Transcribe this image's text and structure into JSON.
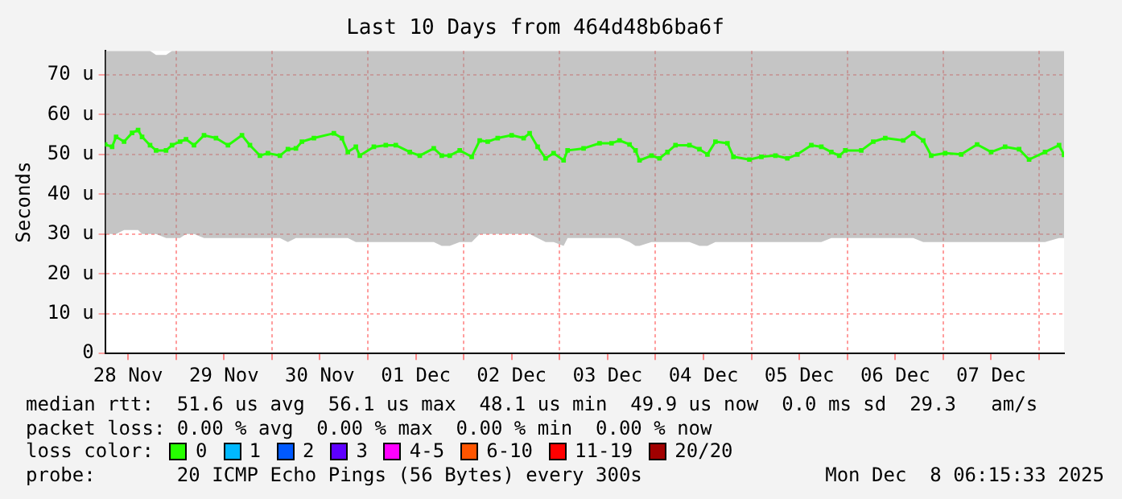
{
  "chart_data": {
    "type": "line",
    "title": "Last 10 Days from 464d48b6ba6f",
    "ylabel": "Seconds",
    "xlim": [
      "2025-11-28T06:15",
      "2025-12-08T06:15"
    ],
    "xticks": [
      {
        "value": "2025-11-28T12:00",
        "label": "28 Nov"
      },
      {
        "value": "2025-11-29T00:00",
        "label": null
      },
      {
        "value": "2025-11-29T12:00",
        "label": "29 Nov"
      },
      {
        "value": "2025-11-30T00:00",
        "label": null
      },
      {
        "value": "2025-11-30T12:00",
        "label": "30 Nov"
      },
      {
        "value": "2025-12-01T00:00",
        "label": null
      },
      {
        "value": "2025-12-01T12:00",
        "label": "01 Dec"
      },
      {
        "value": "2025-12-02T00:00",
        "label": null
      },
      {
        "value": "2025-12-02T12:00",
        "label": "02 Dec"
      },
      {
        "value": "2025-12-03T00:00",
        "label": null
      },
      {
        "value": "2025-12-03T12:00",
        "label": "03 Dec"
      },
      {
        "value": "2025-12-04T00:00",
        "label": null
      },
      {
        "value": "2025-12-04T12:00",
        "label": "04 Dec"
      },
      {
        "value": "2025-12-05T00:00",
        "label": null
      },
      {
        "value": "2025-12-05T12:00",
        "label": "05 Dec"
      },
      {
        "value": "2025-12-06T00:00",
        "label": null
      },
      {
        "value": "2025-12-06T12:00",
        "label": "06 Dec"
      },
      {
        "value": "2025-12-07T00:00",
        "label": null
      },
      {
        "value": "2025-12-07T12:00",
        "label": "07 Dec"
      },
      {
        "value": "2025-12-08T00:00",
        "label": null
      }
    ],
    "ylim": [
      0,
      76
    ],
    "yticks": [
      0,
      {
        "value": 10,
        "label": "10 u"
      },
      {
        "value": 20,
        "label": "20 u"
      },
      {
        "value": 30,
        "label": "30 u"
      },
      {
        "value": 40,
        "label": "40 u"
      },
      {
        "value": 50,
        "label": "50 u"
      },
      {
        "value": 60,
        "label": "60 u"
      },
      {
        "value": 70,
        "label": "70 u"
      }
    ],
    "grid": true,
    "marker": "square",
    "line_style": "solid",
    "legend": "bottom",
    "legend_title": "loss color:",
    "series": [
      {
        "name": "0",
        "color": "#26ff00",
        "x": [
          "2025-11-28T06:15",
          "2025-11-28T08:00",
          "2025-11-28T09:00",
          "2025-11-28T11:00",
          "2025-11-28T13:00",
          "2025-11-28T14:30",
          "2025-11-28T15:30",
          "2025-11-28T17:30",
          "2025-11-28T19:00",
          "2025-11-28T21:30",
          "2025-11-28T23:00",
          "2025-11-29T01:00",
          "2025-11-29T02:30",
          "2025-11-29T04:30",
          "2025-11-29T07:00",
          "2025-11-29T10:00",
          "2025-11-29T13:00",
          "2025-11-29T16:30",
          "2025-11-29T18:30",
          "2025-11-29T21:00",
          "2025-11-29T23:00",
          "2025-11-30T02:00",
          "2025-11-30T04:00",
          "2025-11-30T06:00",
          "2025-11-30T07:30",
          "2025-11-30T10:30",
          "2025-11-30T15:30",
          "2025-11-30T17:30",
          "2025-11-30T19:00",
          "2025-11-30T21:00",
          "2025-11-30T22:00",
          "2025-12-01T01:30",
          "2025-12-01T04:30",
          "2025-12-01T07:00",
          "2025-12-01T10:30",
          "2025-12-01T13:00",
          "2025-12-01T16:30",
          "2025-12-01T18:30",
          "2025-12-01T20:30",
          "2025-12-01T23:00",
          "2025-12-02T02:00",
          "2025-12-02T04:00",
          "2025-12-02T06:00",
          "2025-12-02T08:30",
          "2025-12-02T12:00",
          "2025-12-02T15:00",
          "2025-12-02T16:30",
          "2025-12-02T18:30",
          "2025-12-02T20:30",
          "2025-12-02T22:30",
          "2025-12-03T01:00",
          "2025-12-03T02:00",
          "2025-12-03T06:00",
          "2025-12-03T10:00",
          "2025-12-03T13:00",
          "2025-12-03T15:00",
          "2025-12-03T17:30",
          "2025-12-03T19:00",
          "2025-12-03T20:00",
          "2025-12-03T23:00",
          "2025-12-04T01:00",
          "2025-12-04T03:00",
          "2025-12-04T05:00",
          "2025-12-04T08:30",
          "2025-12-04T11:00",
          "2025-12-04T13:00",
          "2025-12-04T15:00",
          "2025-12-04T18:00",
          "2025-12-04T19:30",
          "2025-12-04T23:30",
          "2025-12-05T02:30",
          "2025-12-05T06:00",
          "2025-12-05T09:00",
          "2025-12-05T11:30",
          "2025-12-05T15:00",
          "2025-12-05T17:30",
          "2025-12-05T20:00",
          "2025-12-05T22:00",
          "2025-12-05T23:30",
          "2025-12-06T03:30",
          "2025-12-06T06:30",
          "2025-12-06T09:30",
          "2025-12-06T14:00",
          "2025-12-06T16:30",
          "2025-12-06T19:00",
          "2025-12-06T21:00",
          "2025-12-07T00:30",
          "2025-12-07T04:30",
          "2025-12-07T08:30",
          "2025-12-07T12:00",
          "2025-12-07T15:30",
          "2025-12-07T19:00",
          "2025-12-07T21:30",
          "2025-12-08T01:30",
          "2025-12-08T05:00",
          "2025-12-08T06:15"
        ],
        "values": [
          52.5,
          51.9,
          54.4,
          53.2,
          55.4,
          56.1,
          54.4,
          52.3,
          51.0,
          51.0,
          52.3,
          53.2,
          53.8,
          52.3,
          54.8,
          54.1,
          52.3,
          54.8,
          52.3,
          49.7,
          50.3,
          49.7,
          51.3,
          51.5,
          53.2,
          54.1,
          55.3,
          54.1,
          50.6,
          51.9,
          49.7,
          51.9,
          52.3,
          52.3,
          50.6,
          49.7,
          51.5,
          49.7,
          49.7,
          51.0,
          49.4,
          53.5,
          53.2,
          54.1,
          54.8,
          54.1,
          55.3,
          51.9,
          49.0,
          50.3,
          48.5,
          51.0,
          51.5,
          52.8,
          52.8,
          53.5,
          52.5,
          51.0,
          48.5,
          49.7,
          49.0,
          50.6,
          52.3,
          52.3,
          51.3,
          50.0,
          53.2,
          52.8,
          49.4,
          48.7,
          49.4,
          49.7,
          49.0,
          50.0,
          52.3,
          51.9,
          50.6,
          49.7,
          51.0,
          51.0,
          53.2,
          54.1,
          53.5,
          55.3,
          53.5,
          49.7,
          50.3,
          50.0,
          52.5,
          50.6,
          51.9,
          51.3,
          48.7,
          50.6,
          52.3,
          49.9
        ],
        "lower": [
          30,
          30,
          30,
          31,
          31,
          31,
          30,
          30,
          30,
          29,
          29,
          29,
          30,
          30,
          29,
          29,
          29,
          29,
          29,
          29,
          29,
          29,
          28,
          29,
          29,
          29,
          29,
          29,
          29,
          28,
          28,
          28,
          28,
          28,
          28,
          28,
          28,
          27,
          27,
          28,
          28,
          30,
          30,
          30,
          30,
          30,
          30,
          29,
          28,
          28,
          27,
          29,
          29,
          29,
          29,
          29,
          28,
          27,
          27,
          28,
          28,
          28,
          28,
          28,
          27,
          27,
          28,
          28,
          28,
          28,
          28,
          28,
          28,
          28,
          28,
          28,
          29,
          29,
          29,
          29,
          29,
          29,
          29,
          29,
          28,
          28,
          28,
          28,
          28,
          28,
          28,
          28,
          28,
          28,
          29,
          29
        ],
        "upper": [
          76,
          76,
          76,
          76,
          76,
          76,
          76,
          76,
          75,
          75,
          76,
          76,
          76,
          76,
          76,
          76,
          76,
          76,
          76,
          76,
          76,
          76,
          76,
          76,
          76,
          76,
          76,
          76,
          76,
          76,
          76,
          76,
          76,
          76,
          76,
          76,
          76,
          76,
          76,
          76,
          76,
          76,
          76,
          76,
          76,
          76,
          76,
          76,
          76,
          76,
          76,
          76,
          76,
          76,
          76,
          76,
          76,
          76,
          76,
          76,
          76,
          76,
          76,
          76,
          76,
          76,
          76,
          76,
          76,
          76,
          76,
          76,
          76,
          76,
          76,
          76,
          76,
          76,
          76,
          76,
          76,
          76,
          76,
          76,
          76,
          76,
          76,
          76,
          76,
          76,
          76,
          76,
          76,
          76,
          76,
          76
        ]
      },
      {
        "name": "1",
        "color": "#00b8ff"
      },
      {
        "name": "2",
        "color": "#0059ff"
      },
      {
        "name": "3",
        "color": "#5e00ff"
      },
      {
        "name": "4-5",
        "color": "#ff00ff"
      },
      {
        "name": "6-10",
        "color": "#ff5500"
      },
      {
        "name": "11-19",
        "color": "#ff0000"
      },
      {
        "name": "20/20",
        "color": "#a10000"
      }
    ],
    "annotations": [
      "median rtt:  51.6 us avg  56.1 us max  48.1 us min  49.9 us now  0.0 ms sd  29.3   am/s",
      "packet loss: 0.00 % avg  0.00 % max  0.00 % min  0.00 % now",
      "probe:       20 ICMP Echo Pings (56 Bytes) every 300s",
      "Mon Dec  8 06:15:33 2025"
    ]
  }
}
